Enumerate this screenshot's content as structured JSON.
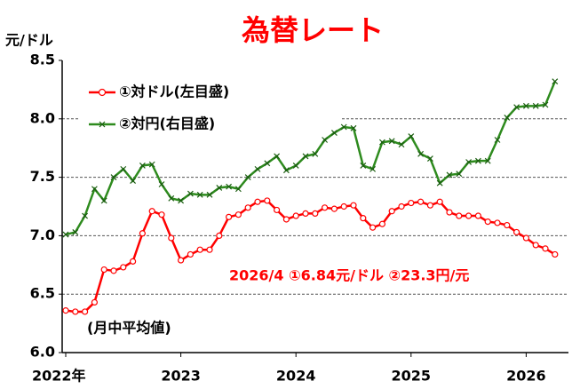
{
  "chart_data": {
    "type": "line",
    "title": "為替レート",
    "y_axis_label": "元/ドル",
    "annotation": "2026/4 ①6.84元/ドル ②23.3円/元",
    "note": "(月中平均値)",
    "categories": [
      "2022年",
      null,
      null,
      null,
      null,
      null,
      null,
      null,
      null,
      null,
      null,
      null,
      "2023",
      null,
      null,
      null,
      null,
      null,
      null,
      null,
      null,
      null,
      null,
      null,
      "2024",
      null,
      null,
      null,
      null,
      null,
      null,
      null,
      null,
      null,
      null,
      null,
      "2025",
      null,
      null,
      null,
      null,
      null,
      null,
      null,
      null,
      null,
      null,
      null,
      "2026",
      null,
      null,
      null
    ],
    "series": [
      {
        "name": "①対ドル(左目盛)",
        "color": "#ff0000",
        "marker": "circle",
        "values": [
          6.36,
          6.35,
          6.35,
          6.43,
          6.71,
          6.7,
          6.73,
          6.78,
          7.02,
          7.21,
          7.18,
          6.98,
          6.79,
          6.84,
          6.88,
          6.88,
          7.0,
          7.16,
          7.18,
          7.24,
          7.29,
          7.3,
          7.22,
          7.14,
          7.17,
          7.19,
          7.19,
          7.24,
          7.23,
          7.25,
          7.26,
          7.15,
          7.07,
          7.1,
          7.21,
          7.25,
          7.28,
          7.29,
          7.26,
          7.29,
          7.2,
          7.17,
          7.17,
          7.17,
          7.12,
          7.11,
          7.09,
          7.03,
          6.98,
          6.92,
          6.89,
          6.84
        ]
      },
      {
        "name": "②対円(右目盛)",
        "color": "#2e8b1e",
        "marker": "x",
        "values": [
          7.01,
          7.03,
          7.17,
          7.4,
          7.3,
          7.5,
          7.57,
          7.47,
          7.6,
          7.61,
          7.44,
          7.32,
          7.3,
          7.36,
          7.35,
          7.35,
          7.41,
          7.42,
          7.4,
          7.5,
          7.57,
          7.62,
          7.68,
          7.56,
          7.6,
          7.68,
          7.7,
          7.82,
          7.88,
          7.93,
          7.92,
          7.6,
          7.57,
          7.8,
          7.81,
          7.78,
          7.85,
          7.7,
          7.66,
          7.45,
          7.52,
          7.53,
          7.63,
          7.64,
          7.64,
          7.82,
          8.01,
          8.1,
          8.11,
          8.11,
          8.12,
          8.32
        ]
      }
    ],
    "ylim": [
      6.0,
      8.5
    ],
    "yticks": [
      {
        "value": 6.0,
        "label": "6.0"
      },
      6.5,
      {
        "value": 7.0,
        "label": "7.0"
      },
      7.5,
      {
        "value": 8.0,
        "label": "8.0"
      },
      8.5
    ],
    "grid": true,
    "legend": "top-left"
  }
}
